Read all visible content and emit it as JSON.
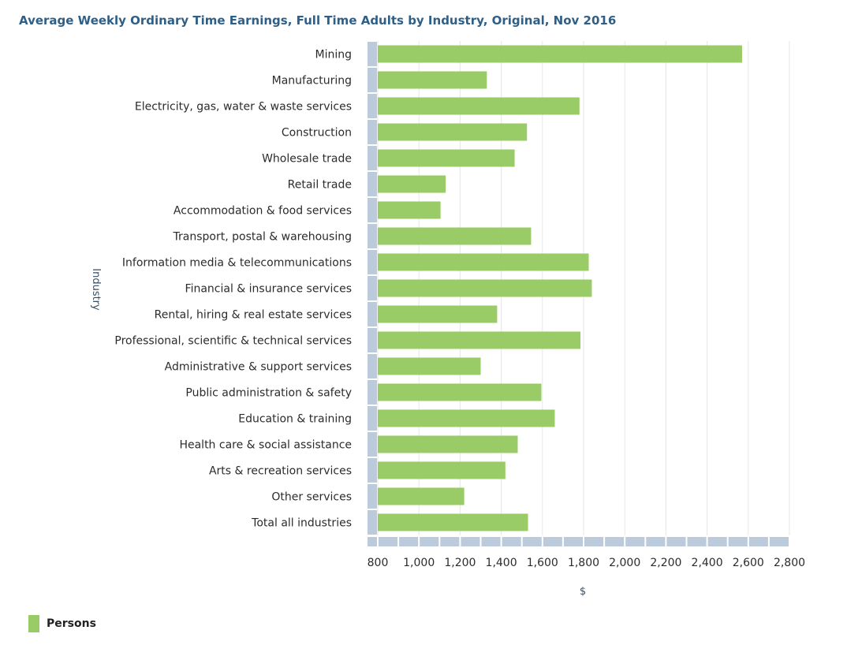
{
  "chart_data": {
    "type": "bar",
    "orientation": "horizontal",
    "title": "Average Weekly Ordinary Time Earnings, Full Time Adults by Industry, Original, Nov 2016",
    "xlabel": "$",
    "ylabel": "Industry",
    "xlim": [
      800,
      2800
    ],
    "xticks": [
      800,
      1000,
      1200,
      1400,
      1600,
      1800,
      2000,
      2200,
      2400,
      2600,
      2800
    ],
    "xtick_labels": [
      "800",
      "1,000",
      "1,200",
      "1,400",
      "1,600",
      "1,800",
      "2,000",
      "2,200",
      "2,400",
      "2,600",
      "2,800"
    ],
    "grid": true,
    "legend_position": "bottom-left",
    "bar_color": "#99cc66",
    "axis_color": "#bccbdc",
    "categories": [
      "Mining",
      "Manufacturing",
      "Electricity, gas, water & waste services",
      "Construction",
      "Wholesale trade",
      "Retail trade",
      "Accommodation & food services",
      "Transport, postal & warehousing",
      "Information media & telecommunications",
      "Financial & insurance services",
      "Rental, hiring & real estate services",
      "Professional, scientific & technical services",
      "Administrative & support services",
      "Public administration & safety",
      "Education & training",
      "Health care & social assistance",
      "Arts & recreation services",
      "Other services",
      "Total all industries"
    ],
    "series": [
      {
        "name": "Persons",
        "values": [
          2570,
          1330,
          1780,
          1525,
          1465,
          1130,
          1105,
          1545,
          1825,
          1840,
          1380,
          1785,
          1300,
          1595,
          1660,
          1480,
          1420,
          1220,
          1530
        ]
      }
    ]
  }
}
